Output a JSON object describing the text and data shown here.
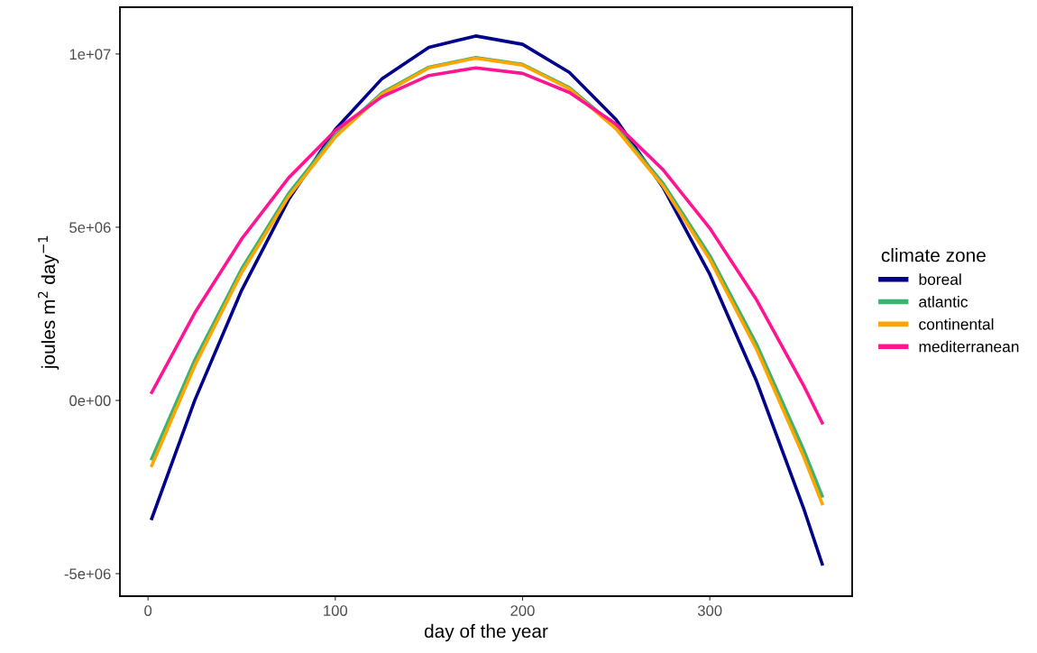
{
  "chart_data": {
    "type": "line",
    "xlabel": "day of the year",
    "ylabel": "joules m$^{2}$ day$^{−1}$",
    "legend_title": "climate zone",
    "legend": "right",
    "grid": false,
    "marker": "none",
    "line_style": "solid",
    "x": [
      2,
      25,
      50,
      75,
      100,
      125,
      150,
      175,
      200,
      225,
      250,
      275,
      300,
      325,
      350,
      360
    ],
    "xlim": [
      -15,
      376
    ],
    "xticks": [
      0,
      100,
      200,
      300
    ],
    "ylim": [
      -5650000,
      11350000
    ],
    "yticks": [
      {
        "value": -5000000,
        "label": "-5e+06"
      },
      {
        "value": 0,
        "label": "0e+00"
      },
      {
        "value": 5000000,
        "label": "5e+06"
      },
      {
        "value": 10000000,
        "label": "1e+07"
      }
    ],
    "series": [
      {
        "name": "boreal",
        "color": "#00008b",
        "values": [
          -3410000,
          10000,
          3180000,
          5790000,
          7820000,
          9290000,
          10190000,
          10520000,
          10280000,
          9470000,
          8100000,
          6150000,
          3640000,
          550000,
          -3100000,
          -4720000
        ]
      },
      {
        "name": "atlantic",
        "color": "#3cb371",
        "values": [
          -1680000,
          1170000,
          3800000,
          5970000,
          7660000,
          8880000,
          9620000,
          9900000,
          9700000,
          9030000,
          7890000,
          6270000,
          4180000,
          1620000,
          -1410000,
          -2760000
        ]
      },
      {
        "name": "continental",
        "color": "#ffa500",
        "values": [
          -1880000,
          1010000,
          3690000,
          5880000,
          7600000,
          8840000,
          9600000,
          9880000,
          9680000,
          9000000,
          7830000,
          6190000,
          4070000,
          1470000,
          -1610000,
          -2980000
        ]
      },
      {
        "name": "mediterranean",
        "color": "#ff1493",
        "values": [
          230000,
          2530000,
          4660000,
          6420000,
          7790000,
          8770000,
          9380000,
          9600000,
          9440000,
          8890000,
          7970000,
          6660000,
          4970000,
          2900000,
          440000,
          -650000
        ]
      }
    ]
  }
}
